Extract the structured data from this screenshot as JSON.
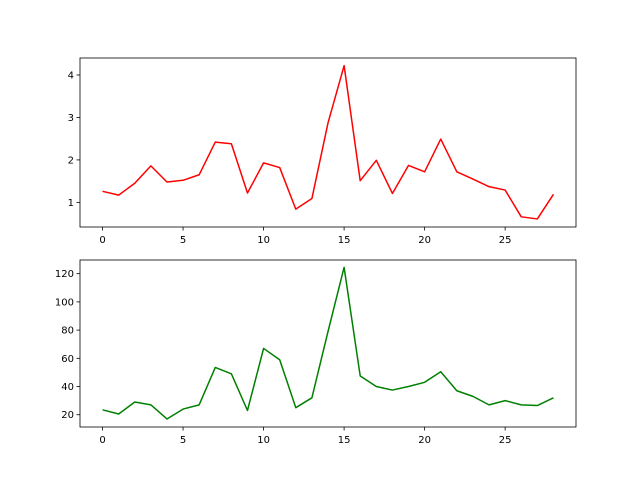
{
  "chart_data": [
    {
      "type": "line",
      "x": [
        0,
        1,
        2,
        3,
        4,
        5,
        6,
        7,
        8,
        9,
        10,
        11,
        12,
        13,
        14,
        15,
        16,
        17,
        18,
        19,
        20,
        21,
        22,
        23,
        24,
        25,
        26,
        27,
        28
      ],
      "series": [
        {
          "color": "#ff0000",
          "values": [
            1.26,
            1.17,
            1.45,
            1.86,
            1.48,
            1.52,
            1.65,
            2.42,
            2.38,
            1.22,
            1.93,
            1.82,
            0.84,
            1.09,
            2.87,
            4.22,
            1.51,
            1.99,
            1.21,
            1.87,
            1.72,
            2.49,
            1.72,
            1.55,
            1.37,
            1.29,
            0.66,
            0.61,
            1.19
          ]
        }
      ],
      "xlim": [
        -1.4,
        29.4
      ],
      "xticks": [
        0,
        5,
        10,
        15,
        20,
        25
      ],
      "ylim": [
        0.42,
        4.4
      ],
      "yticks": [
        1,
        2,
        3,
        4
      ]
    },
    {
      "type": "line",
      "x": [
        0,
        1,
        2,
        3,
        4,
        5,
        6,
        7,
        8,
        9,
        10,
        11,
        12,
        13,
        14,
        15,
        16,
        17,
        18,
        19,
        20,
        21,
        22,
        23,
        24,
        25,
        26,
        27,
        28
      ],
      "series": [
        {
          "color": "#008000",
          "values": [
            23.5,
            20.5,
            29,
            27,
            17,
            24,
            27,
            53.5,
            49,
            23,
            67,
            59,
            25,
            32,
            79,
            124.5,
            47.5,
            40,
            37.5,
            40,
            43,
            50.5,
            37,
            33,
            27,
            30,
            27,
            26.5,
            32
          ]
        }
      ],
      "xlim": [
        -1.4,
        29.4
      ],
      "xticks": [
        0,
        5,
        10,
        15,
        20,
        25
      ],
      "ylim": [
        11.3,
        129.7
      ],
      "yticks": [
        20,
        40,
        60,
        80,
        100,
        120
      ]
    }
  ]
}
